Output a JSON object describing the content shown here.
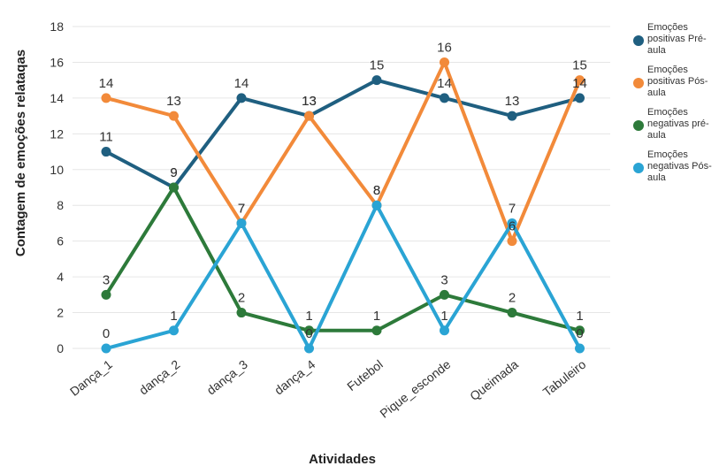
{
  "chart_data": {
    "type": "line",
    "title": "",
    "xlabel": "Atividades",
    "ylabel": "Contagem de emoções relataqas",
    "categories": [
      "Dança_1",
      "dança_2",
      "dança_3",
      "dança_4",
      "Futebol",
      "Pique_esconde",
      "Queimada",
      "Tabuleiro"
    ],
    "ylim": [
      0,
      18
    ],
    "yticks": [
      "0",
      "2",
      "4",
      "6",
      "8",
      "10",
      "12",
      "14",
      "16",
      "18"
    ],
    "grid": true,
    "legend_position": "right",
    "series": [
      {
        "name": "Emoções positivas Pré-aula",
        "legend_lines": [
          "Emoções",
          "positivas Pré-",
          "aula"
        ],
        "color": "#1f5f80",
        "values": [
          11,
          9,
          14,
          13,
          15,
          14,
          13,
          14
        ],
        "labels": [
          "11",
          "9",
          "14",
          "13",
          "15",
          "14",
          "13",
          "14"
        ]
      },
      {
        "name": "Emoções positivas Pós-aula",
        "legend_lines": [
          "Emoções",
          "positivas Pós-",
          "aula"
        ],
        "color": "#f28a3a",
        "values": [
          14,
          13,
          7,
          13,
          8,
          16,
          6,
          15
        ],
        "labels": [
          "14",
          "13",
          "7",
          "13",
          "8",
          "16",
          "6",
          "15"
        ]
      },
      {
        "name": "Emoções negativas pré-aula",
        "legend_lines": [
          "Emoções",
          "negativas pré-",
          "aula"
        ],
        "color": "#2d7a3a",
        "values": [
          3,
          9,
          2,
          1,
          1,
          3,
          2,
          1
        ],
        "labels": [
          "3",
          "9",
          "2",
          "1",
          "1",
          "3",
          "2",
          "1"
        ]
      },
      {
        "name": "Emoções negativas Pós-aula",
        "legend_lines": [
          "Emoções",
          "negativas Pós-",
          "aula"
        ],
        "color": "#2aa4d4",
        "values": [
          0,
          1,
          7,
          0,
          8,
          1,
          7,
          0
        ],
        "labels": [
          "0",
          "1",
          "7",
          "0",
          "8",
          "1",
          "7",
          "0"
        ]
      }
    ]
  }
}
